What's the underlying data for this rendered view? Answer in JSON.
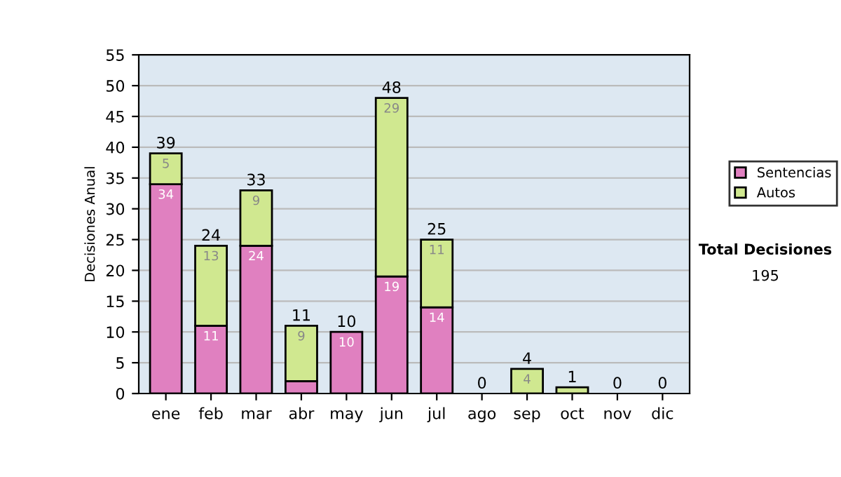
{
  "chart_data": {
    "type": "bar",
    "stacked": true,
    "ylabel": "Decisiones Anual",
    "categories": [
      "ene",
      "feb",
      "mar",
      "abr",
      "may",
      "jun",
      "jul",
      "ago",
      "sep",
      "oct",
      "nov",
      "dic"
    ],
    "series": [
      {
        "name": "Sentencias",
        "color": "#e080c0",
        "values": [
          34,
          11,
          24,
          2,
          10,
          19,
          14,
          0,
          0,
          0,
          0,
          0
        ],
        "value_labels": [
          "34",
          "11",
          "24",
          null,
          "10",
          "19",
          "14",
          null,
          null,
          null,
          null,
          null
        ]
      },
      {
        "name": "Autos",
        "color": "#d0e890",
        "values": [
          5,
          13,
          9,
          9,
          0,
          29,
          11,
          0,
          4,
          1,
          0,
          0
        ],
        "value_labels": [
          "5",
          "13",
          "9",
          "9",
          null,
          "29",
          "11",
          null,
          "4",
          null,
          null,
          null
        ]
      }
    ],
    "totals": [
      "39",
      "24",
      "33",
      "11",
      "10",
      "48",
      "25",
      "0",
      "4",
      "1",
      "0",
      "0"
    ],
    "ylim": [
      0,
      55
    ],
    "yticks": [
      0,
      5,
      10,
      15,
      20,
      25,
      30,
      35,
      40,
      45,
      50,
      55
    ],
    "grid": "y",
    "legend": "right",
    "annotations": [
      "Total Decisiones",
      "195"
    ]
  }
}
